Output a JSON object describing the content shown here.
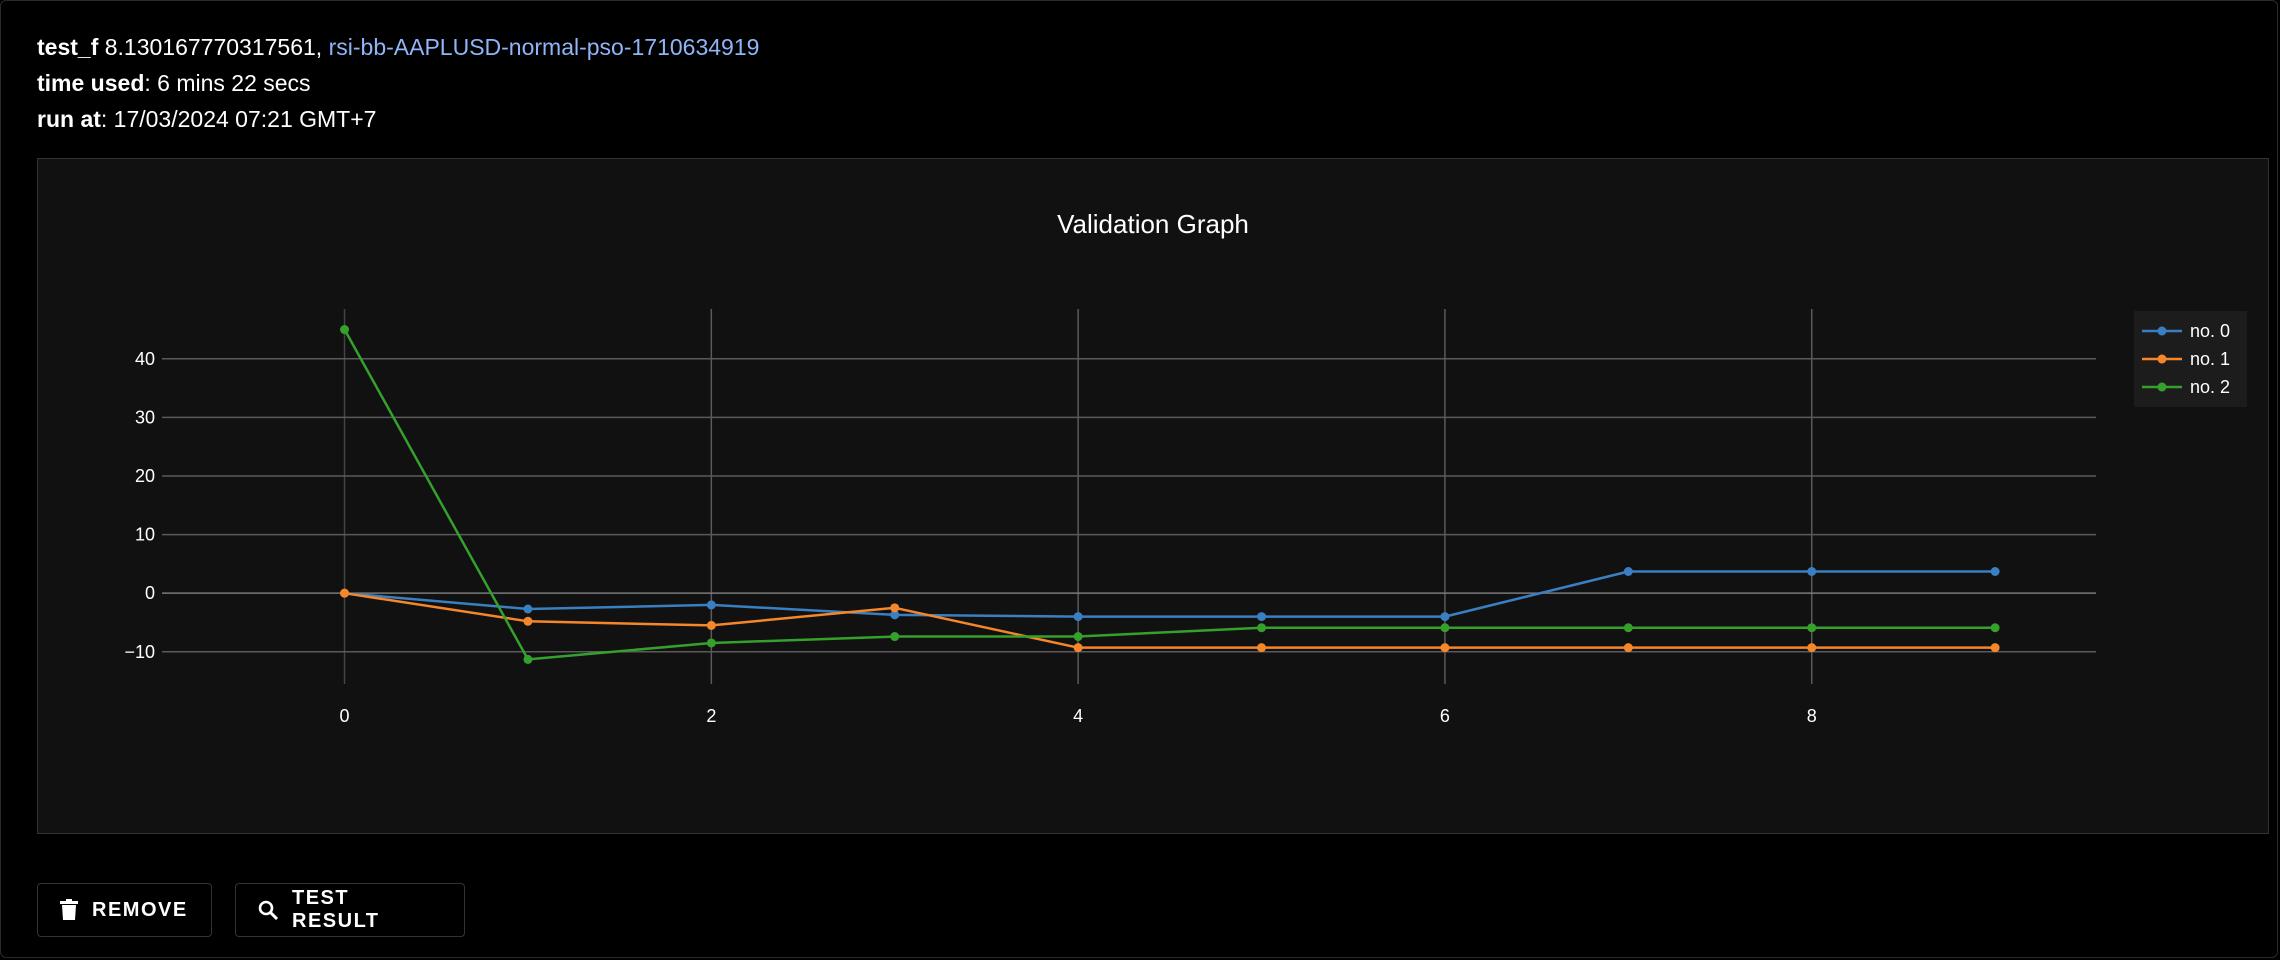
{
  "info": {
    "test_f_label": "test_f",
    "test_f_value": " 8.130167770317561, ",
    "run_name": "rsi-bb-AAPLUSD-normal-pso-1710634919",
    "time_used_label": "time used",
    "time_used_value": ": 6 mins 22 secs",
    "run_at_label": "run at",
    "run_at_value": ": 17/03/2024 07:21 GMT+7"
  },
  "buttons": {
    "remove_label": "REMOVE",
    "remove_icon": "trash-icon",
    "test_result_label": "TEST RESULT",
    "test_result_icon": "search-icon"
  },
  "chart_data": {
    "type": "line",
    "title": "Validation Graph",
    "xlabel": "",
    "ylabel": "",
    "x": [
      0,
      1,
      2,
      3,
      4,
      5,
      6,
      7,
      8,
      9
    ],
    "xlim": [
      -0.45,
      9.55
    ],
    "ylim": [
      -15.5,
      48.5
    ],
    "xticks": [
      0,
      2,
      4,
      6,
      8
    ],
    "yticks": [
      -10,
      0,
      10,
      20,
      30,
      40
    ],
    "ytick_labels": [
      "−10",
      "0",
      "10",
      "20",
      "30",
      "40"
    ],
    "grid": true,
    "legend_position": "top-right",
    "series": [
      {
        "name": "no. 0",
        "color": "#3a7fc1",
        "values": [
          0,
          -2.7,
          -2,
          -3.7,
          -4,
          -4,
          -4,
          3.7,
          3.7,
          3.7
        ]
      },
      {
        "name": "no. 1",
        "color": "#f5862a",
        "values": [
          0,
          -4.8,
          -5.5,
          -2.5,
          -9.3,
          -9.3,
          -9.3,
          -9.3,
          -9.3,
          -9.3
        ]
      },
      {
        "name": "no. 2",
        "color": "#35a02c",
        "values": [
          45,
          -11.3,
          -8.5,
          -7.4,
          -7.4,
          -5.9,
          -5.9,
          -5.9,
          -5.9,
          -5.9
        ]
      }
    ]
  }
}
